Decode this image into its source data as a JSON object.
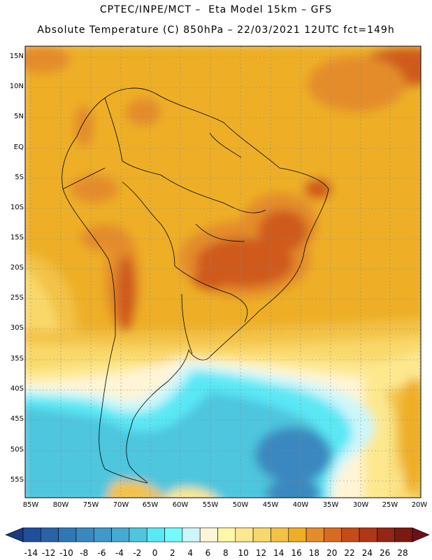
{
  "header": {
    "line1": "CPTEC/INPE/MCT –  Eta Model 15km – GFS",
    "line2": "Absolute Temperature (C) 850hPa – 22/03/2021 12UTC fct=149h"
  },
  "map": {
    "lat_labels": [
      "15N",
      "10N",
      "5N",
      "EQ",
      "5S",
      "10S",
      "15S",
      "20S",
      "25S",
      "30S",
      "35S",
      "40S",
      "45S",
      "50S",
      "55S"
    ],
    "lon_labels": [
      "85W",
      "80W",
      "75W",
      "70W",
      "65W",
      "60W",
      "55W",
      "50W",
      "45W",
      "40W",
      "35W",
      "30W",
      "25W",
      "20W"
    ],
    "grid": "dashed",
    "field_colors": {
      "cold_deep": "#3a88c0",
      "cold": "#4ec6de",
      "cyan": "#5ae8f5",
      "pale_cyan": "#cdf6fb",
      "cream": "#fff5d6",
      "light_yellow": "#fde88f",
      "yellow": "#f9d86a",
      "gold": "#f3c246",
      "amber": "#eeaf27",
      "orange": "#e48c2a",
      "red_orange": "#cf5a1f",
      "dark_red": "#a93212"
    }
  },
  "colorbar": {
    "labels": [
      "-14",
      "-12",
      "-10",
      "-8",
      "-6",
      "-4",
      "-2",
      "0",
      "2",
      "4",
      "6",
      "8",
      "10",
      "12",
      "14",
      "16",
      "18",
      "20",
      "22",
      "24",
      "26",
      "28"
    ],
    "colors": [
      "#1f4e9a",
      "#2863a9",
      "#2f78b5",
      "#3a88c0",
      "#4099c8",
      "#46aad2",
      "#4ec6de",
      "#5ae8f5",
      "#73fbfd",
      "#cdf6fb",
      "#fff5d6",
      "#fef7a8",
      "#fde88f",
      "#f9d86a",
      "#f3c246",
      "#eeaf27",
      "#e48c2a",
      "#d96b1f",
      "#c54b19",
      "#b03716",
      "#932615",
      "#7a1a10"
    ],
    "under_color": "#1a3a80",
    "over_color": "#6e0f18"
  }
}
